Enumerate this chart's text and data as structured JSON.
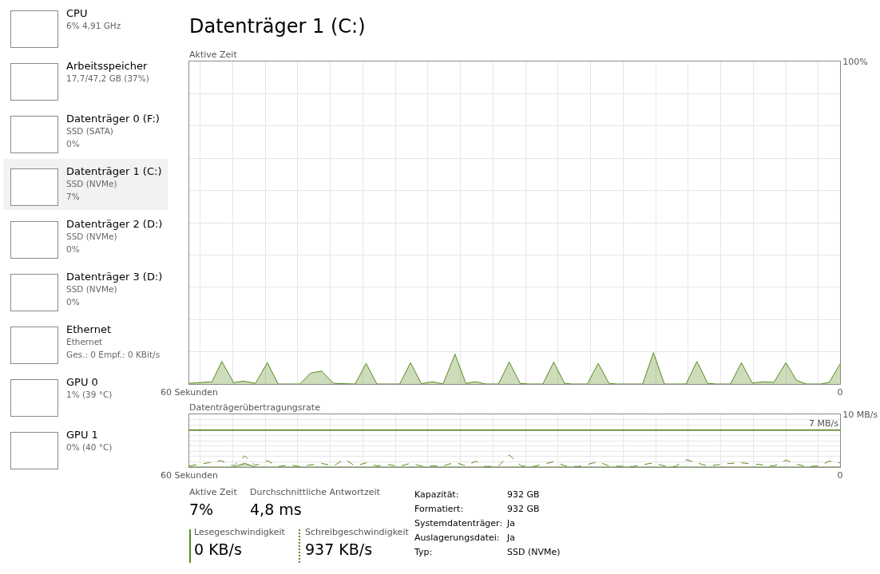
{
  "chart_data": [
    {
      "type": "other",
      "annotations": [
        "CPU\n6% 4,91 GHz",
        "Arbeitsspeicher\n17,7/47,2 GB (37%)",
        "Datenträger 0 (F:)\nSSD (SATA)\n0%",
        "Datenträger 1 (C:)\nSSD (NVMe)\n7%",
        "Datenträger 2 (D:)\nSSD (NVMe)\n0%",
        "Datenträger 3 (D:)\nSSD (NVMe)\n0%",
        "Ethernet\nEthernet\nGes.: 0 Empf.: 0 KBit/s",
        "GPU 0\n1% (39 °C)",
        "GPU 1\n0% (40 °C)"
      ]
    },
    {
      "type": "area",
      "title": "Datenträger 1 (C:)",
      "ylabel": "Aktive Zeit",
      "grid": true,
      "xlim": [
        60,
        0
      ],
      "xticks": [
        {
          "value": 60,
          "label": "60 Sekunden"
        },
        {
          "value": 59,
          "label": null
        },
        {
          "value": 56,
          "label": null
        },
        {
          "value": 53,
          "label": null
        },
        {
          "value": 50,
          "label": null
        },
        {
          "value": 47,
          "label": null
        },
        {
          "value": 44,
          "label": null
        },
        {
          "value": 41,
          "label": null
        },
        {
          "value": 38,
          "label": null
        },
        {
          "value": 35,
          "label": null
        },
        {
          "value": 32,
          "label": null
        },
        {
          "value": 29,
          "label": null
        },
        {
          "value": 26,
          "label": null
        },
        {
          "value": 23,
          "label": null
        },
        {
          "value": 20,
          "label": null
        },
        {
          "value": 17,
          "label": null
        },
        {
          "value": 14,
          "label": null
        },
        {
          "value": 11,
          "label": null
        },
        {
          "value": 8,
          "label": null
        },
        {
          "value": 5,
          "label": null
        },
        {
          "value": 2,
          "label": null
        },
        0
      ],
      "ylim": [
        0,
        100
      ],
      "yticks": [
        {
          "value": 0,
          "label": null
        },
        {
          "value": 10,
          "label": null
        },
        {
          "value": 20,
          "label": null
        },
        {
          "value": 30,
          "label": null
        },
        {
          "value": 40,
          "label": null
        },
        {
          "value": 50,
          "label": null
        },
        {
          "value": 60,
          "label": null
        },
        {
          "value": 70,
          "label": null
        },
        {
          "value": 80,
          "label": null
        },
        {
          "value": 90,
          "label": null
        },
        {
          "value": 100,
          "label": "100%"
        }
      ],
      "series": [
        {
          "color": "#5a8a1e",
          "x": [
            60.0,
            57.9,
            57.0,
            55.9,
            55.0,
            53.9,
            52.8,
            51.8,
            49.8,
            48.8,
            47.8,
            46.7,
            44.7,
            43.7,
            42.7,
            40.6,
            39.6,
            38.6,
            37.6,
            36.6,
            35.5,
            34.5,
            33.6,
            32.7,
            31.5,
            30.5,
            29.5,
            28.7,
            27.4,
            26.4,
            25.4,
            24.7,
            23.3,
            22.3,
            21.3,
            20.6,
            18.2,
            17.2,
            16.2,
            14.2,
            13.2,
            12.2,
            11.4,
            10.1,
            9.1,
            8.1,
            7.0,
            6.1,
            5.0,
            4.0,
            3.1,
            1.8,
            1.0,
            0.0
          ],
          "values": [
            0.2,
            0.7,
            7.0,
            0.4,
            0.9,
            0.2,
            6.6,
            0,
            0,
            3.4,
            4.0,
            0.2,
            0,
            6.4,
            0,
            0,
            6.6,
            0.1,
            0.7,
            0,
            9.3,
            0.2,
            0.7,
            0,
            0,
            6.8,
            0.2,
            0,
            0,
            6.8,
            0.2,
            0,
            0,
            6.4,
            0.2,
            0,
            0,
            9.7,
            0,
            0,
            7.0,
            0.2,
            0,
            0,
            6.6,
            0.3,
            0.7,
            0.5,
            6.6,
            1.1,
            0,
            0,
            0.5,
            6.2
          ]
        }
      ]
    },
    {
      "type": "line",
      "ylabel": "Datenträgerübertragungsrate",
      "grid": true,
      "xlim": [
        60,
        0
      ],
      "xticks": [
        {
          "value": 60,
          "label": "60 Sekunden"
        },
        {
          "value": 59,
          "label": null
        },
        {
          "value": 56,
          "label": null
        },
        {
          "value": 53,
          "label": null
        },
        {
          "value": 50,
          "label": null
        },
        {
          "value": 47,
          "label": null
        },
        {
          "value": 44,
          "label": null
        },
        {
          "value": 41,
          "label": null
        },
        {
          "value": 38,
          "label": null
        },
        {
          "value": 35,
          "label": null
        },
        {
          "value": 32,
          "label": null
        },
        {
          "value": 29,
          "label": null
        },
        {
          "value": 26,
          "label": null
        },
        {
          "value": 23,
          "label": null
        },
        {
          "value": 20,
          "label": null
        },
        {
          "value": 17,
          "label": null
        },
        {
          "value": 14,
          "label": null
        },
        {
          "value": 11,
          "label": null
        },
        {
          "value": 8,
          "label": null
        },
        {
          "value": 5,
          "label": null
        },
        {
          "value": 2,
          "label": null
        },
        0
      ],
      "ylim": [
        0,
        10
      ],
      "yticks": [
        {
          "value": 0,
          "label": null
        },
        {
          "value": 1,
          "label": null
        },
        {
          "value": 2,
          "label": null
        },
        {
          "value": 3,
          "label": null
        },
        {
          "value": 4,
          "label": null
        },
        {
          "value": 5,
          "label": null
        },
        {
          "value": 6,
          "label": null
        },
        {
          "value": 7,
          "label": null
        },
        {
          "value": 8,
          "label": null
        },
        {
          "value": 9,
          "label": null
        },
        {
          "value": 10,
          "label": "10 MB/s"
        }
      ],
      "ref_lines": [
        {
          "axis": "y",
          "value": 7,
          "label": "7 MB/s",
          "color": "#4d7a12",
          "line_style": "solid"
        }
      ],
      "series": [
        {
          "type": "area",
          "color": "#5a8a1e",
          "line_style": "solid",
          "x": [
            60.0,
            55.9,
            54.9,
            53.9,
            0.0
          ],
          "values": [
            0,
            0,
            0.7,
            0,
            0
          ]
        },
        {
          "type": "line",
          "color": "#5a8a1e",
          "line_style": "dashed",
          "x": [
            60.0,
            57.1,
            55.9,
            54.9,
            53.9,
            52.8,
            51.8,
            50.8,
            49.8,
            47.8,
            46.7,
            45.7,
            44.7,
            43.7,
            42.7,
            41.7,
            40.7,
            39.6,
            38.6,
            36.6,
            35.5,
            34.5,
            33.6,
            32.7,
            31.5,
            30.5,
            29.7,
            29.4,
            28.3,
            26.4,
            25.3,
            24.1,
            22.3,
            21.3,
            19.1,
            17.2,
            16.2,
            15.2,
            14.2,
            12.2,
            10.1,
            9.1,
            6.1,
            5.0,
            4.0,
            3.1,
            2.0,
            1.0,
            0.0
          ],
          "values": [
            0.2,
            1.2,
            0.2,
            2.1,
            0.3,
            1.2,
            0.1,
            0.4,
            0.1,
            0.7,
            0.2,
            1.5,
            0.2,
            0.8,
            0.2,
            0.5,
            0.1,
            0.7,
            0.2,
            0.2,
            0.9,
            0.2,
            1.1,
            0.1,
            0.2,
            2.3,
            0.8,
            0.2,
            0.1,
            1.0,
            0.2,
            0.1,
            1.0,
            0.2,
            0.1,
            0.8,
            0.2,
            0.1,
            1.4,
            0.2,
            0.7,
            0.8,
            0.2,
            1.3,
            0.5,
            0.1,
            0.2,
            1.1,
            0.8
          ]
        }
      ]
    },
    {
      "type": "other",
      "annotations": [
        "Aktive Zeit",
        "7%",
        "Durchschnittliche Antwortzeit",
        "4,8 ms",
        "Lesegeschwindigkeit",
        "0 KB/s",
        "Schreibgeschwindigkeit",
        "937 KB/s",
        "Kapazität:",
        "932 GB",
        "Formatiert:",
        "932 GB",
        "Systemdatenträger:",
        "Ja",
        "Auslagerungsdatei:",
        "Ja",
        "Typ:",
        "SSD (NVMe)"
      ]
    }
  ]
}
